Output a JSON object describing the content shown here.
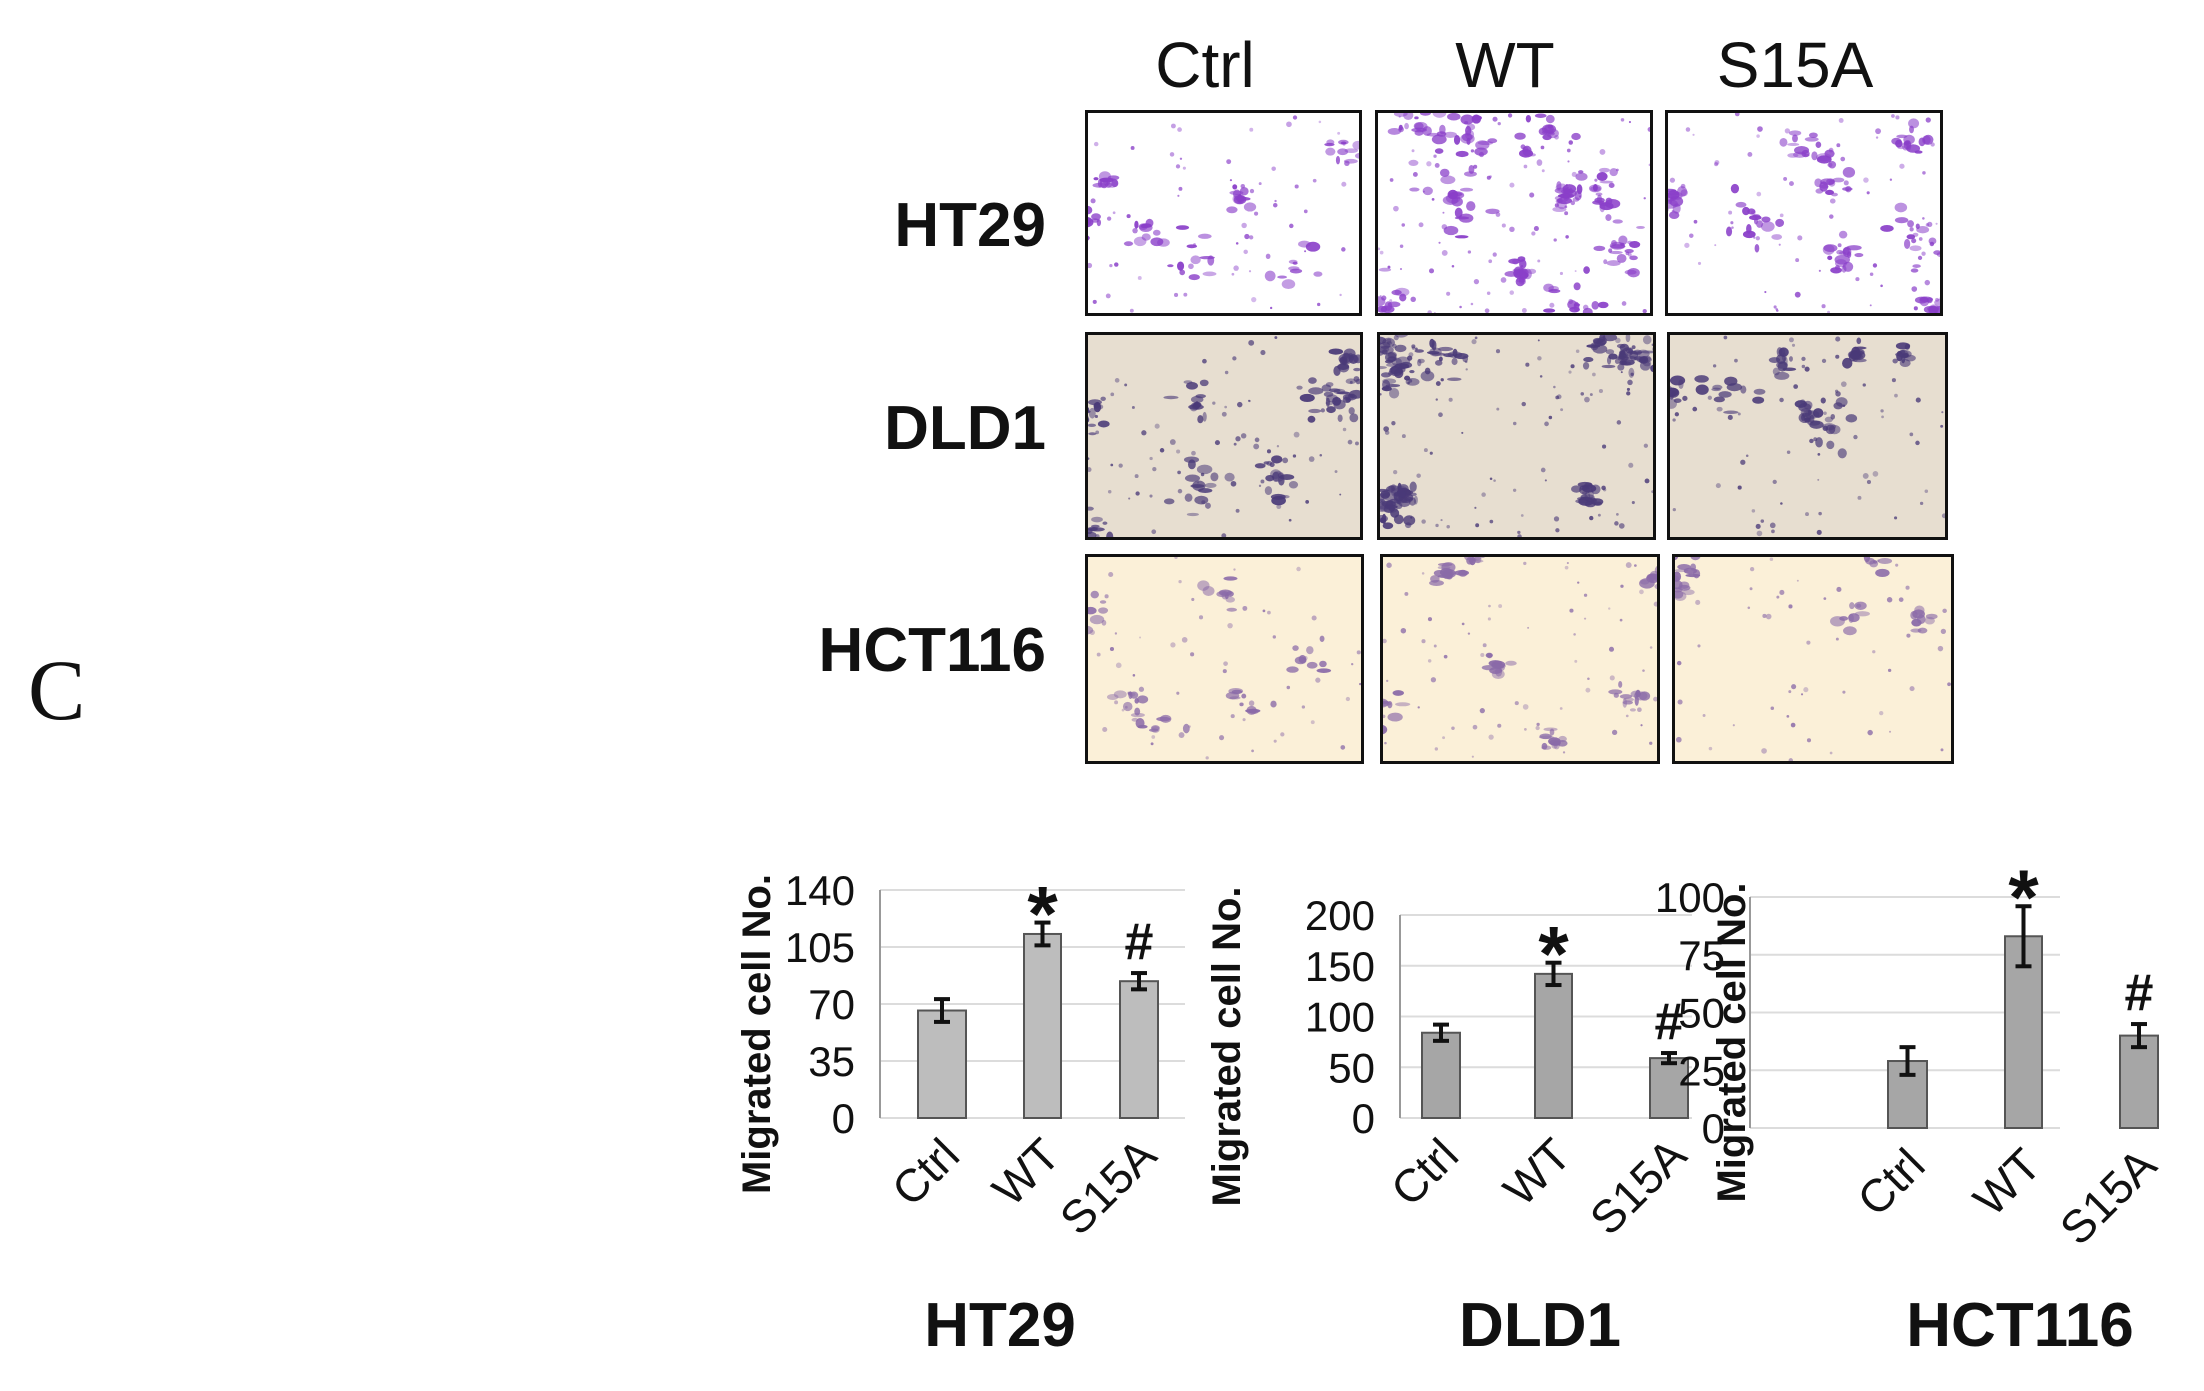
{
  "panel_label": "C",
  "micrographs": {
    "columns": [
      "Ctrl",
      "WT",
      "S15A"
    ],
    "rows": [
      {
        "label": "HT29",
        "tone": "#ffffff",
        "cell": "#8a3fc9",
        "density": [
          0.18,
          0.45,
          0.32
        ]
      },
      {
        "label": "DLD1",
        "tone": "#e7ded0",
        "cell": "#4a3a78",
        "density": [
          0.3,
          0.45,
          0.22
        ]
      },
      {
        "label": "HCT116",
        "tone": "#fbf0d8",
        "cell": "#8a6aa8",
        "density": [
          0.12,
          0.22,
          0.09
        ]
      }
    ]
  },
  "chart_data": [
    {
      "type": "bar",
      "title": "HT29",
      "ylabel": "Migrated cell No.",
      "categories": [
        "Ctrl",
        "WT",
        "S15A"
      ],
      "values": [
        66,
        113,
        84
      ],
      "errors": [
        7,
        7,
        5
      ],
      "annotations": [
        "",
        "*",
        "#"
      ],
      "ylim": [
        0,
        140
      ],
      "yticks": [
        0,
        35,
        70,
        105,
        140
      ],
      "bar_color": "#bdbdbd",
      "grid": true
    },
    {
      "type": "bar",
      "title": "DLD1",
      "ylabel": "Migrated cell No.",
      "categories": [
        "Ctrl",
        "WT",
        "S15A"
      ],
      "values": [
        84,
        142,
        59
      ],
      "errors": [
        8,
        11,
        5
      ],
      "annotations": [
        "",
        "*",
        "#"
      ],
      "ylim": [
        0,
        200
      ],
      "yticks": [
        0,
        50,
        100,
        150,
        200
      ],
      "bar_color": "#a6a6a6",
      "grid": true
    },
    {
      "type": "bar",
      "title": "HCT116",
      "ylabel": "Migrated cell No.",
      "categories": [
        "Ctrl",
        "WT",
        "S15A"
      ],
      "values": [
        29,
        83,
        40
      ],
      "errors": [
        6,
        13,
        5
      ],
      "annotations": [
        "",
        "*",
        "#"
      ],
      "ylim": [
        0,
        100
      ],
      "yticks": [
        0,
        25,
        50,
        75,
        100
      ],
      "bar_color": "#a6a6a6",
      "grid": true
    }
  ]
}
